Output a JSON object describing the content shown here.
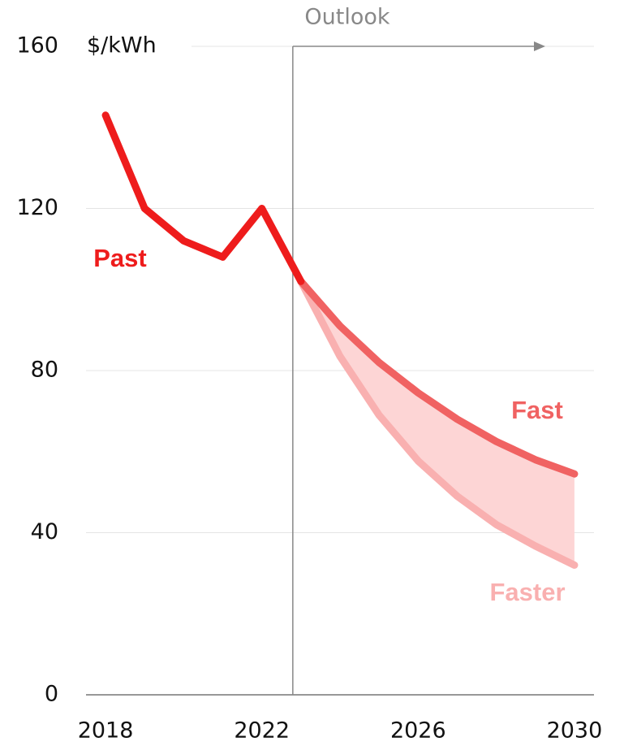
{
  "chart_data": {
    "type": "line",
    "ylabel": "$/kWh",
    "annotation": "Outlook",
    "x": [
      2018,
      2019,
      2020,
      2021,
      2022,
      2023,
      2024,
      2025,
      2026,
      2027,
      2028,
      2029,
      2030
    ],
    "series": [
      {
        "name": "Past",
        "color": "#ee1c1c",
        "values": [
          143,
          120,
          112,
          108,
          120,
          102,
          null,
          null,
          null,
          null,
          null,
          null,
          null
        ]
      },
      {
        "name": "Fast",
        "color": "#f06262",
        "values": [
          null,
          null,
          null,
          null,
          null,
          102,
          91,
          82,
          74.5,
          68,
          62.5,
          58,
          54.5
        ]
      },
      {
        "name": "Faster",
        "color": "#f9b0b0",
        "values": [
          null,
          null,
          null,
          null,
          null,
          102,
          83.5,
          69,
          57.7,
          49,
          42,
          36.7,
          32
        ]
      }
    ],
    "band_color": "#fdd5d5",
    "xlim": [
      2017.5,
      2030.5
    ],
    "xticks": [
      2018,
      2022,
      2026,
      2030
    ],
    "ylim": [
      0,
      160
    ],
    "yticks": [
      0,
      40,
      80,
      120,
      160
    ],
    "grid": true
  }
}
